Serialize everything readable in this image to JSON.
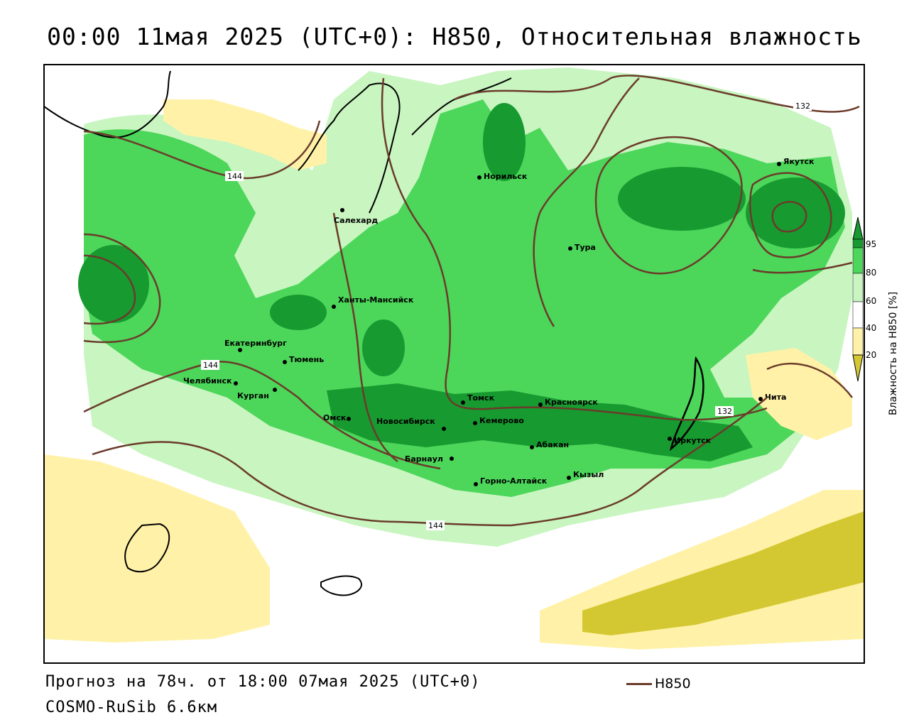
{
  "title": "00:00 11мая 2025 (UTC+0): H850, Относительная влажность",
  "footer": {
    "forecast": "Прогноз на 78ч. от 18:00 07мая 2025 (UTC+0)",
    "model": "COSMO-RuSib 6.6км"
  },
  "legend": {
    "line_label": "H850",
    "line_color": "#6b3b2b"
  },
  "colorbar": {
    "title": "Влажность на H850 [%]",
    "ticks": [
      "95",
      "80",
      "60",
      "40",
      "20"
    ],
    "colors": {
      "very_dry": "#d4c832",
      "dry": "#fff2a8",
      "neutral": "#ffffff",
      "moist": "#c8f5c0",
      "wet": "#4cd65a",
      "very_wet": "#179a30"
    }
  },
  "contour_labels": [
    "144",
    "144",
    "132",
    "132",
    "144"
  ],
  "cities": [
    "Якутск",
    "Норильск",
    "Салехард",
    "Тура",
    "Ханты-Мансийск",
    "Екатеринбург",
    "Тюмень",
    "Челябинск",
    "Курган",
    "Омск",
    "Новосибирск",
    "Томск",
    "Кемерово",
    "Красноярск",
    "Абакан",
    "Барнаул",
    "Горно-Алтайск",
    "Кызыл",
    "Иркутск",
    "Чита"
  ]
}
